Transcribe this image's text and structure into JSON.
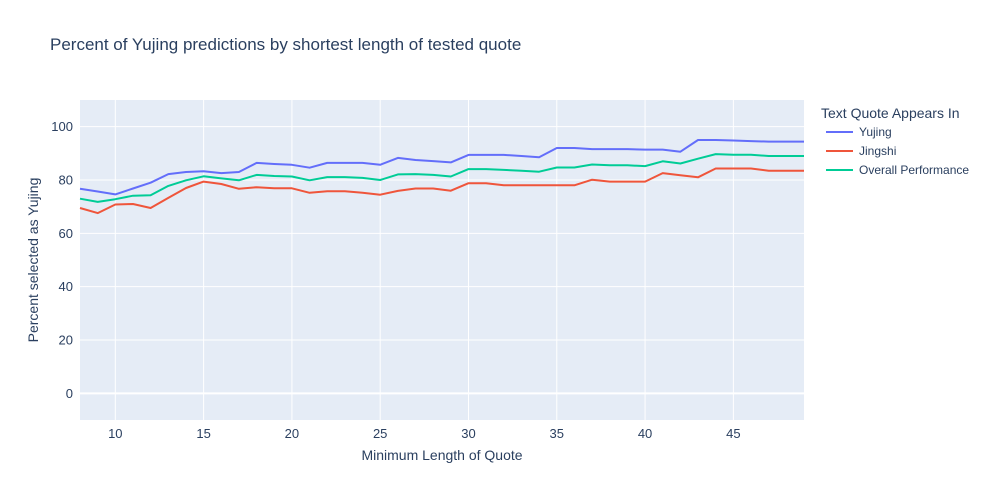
{
  "chart_data": {
    "type": "line",
    "title": "Percent of Yujing predictions by shortest length of tested quote",
    "xlabel": "Minimum Length of Quote",
    "ylabel": "Percent selected as Yujing",
    "xlim": [
      8,
      49
    ],
    "ylim": [
      -10,
      110
    ],
    "xticks": [
      10,
      15,
      20,
      25,
      30,
      35,
      40,
      45
    ],
    "yticks": [
      0,
      20,
      40,
      60,
      80,
      100
    ],
    "legend_title": "Text Quote Appears In",
    "legend_position": "right",
    "grid": true,
    "x": [
      8,
      9,
      10,
      11,
      12,
      13,
      14,
      15,
      16,
      17,
      18,
      19,
      20,
      21,
      22,
      23,
      24,
      25,
      26,
      27,
      28,
      29,
      30,
      31,
      32,
      33,
      34,
      35,
      36,
      37,
      38,
      39,
      40,
      41,
      42,
      43,
      44,
      45,
      46,
      47,
      48,
      49
    ],
    "series": [
      {
        "name": "Yujing",
        "color": "#636efa",
        "values": [
          76.7,
          75.7,
          74.6,
          76.8,
          79.0,
          82.2,
          83.0,
          83.3,
          82.6,
          83.0,
          86.4,
          86.0,
          85.7,
          84.6,
          86.4,
          86.4,
          86.4,
          85.7,
          88.3,
          87.5,
          87.1,
          86.6,
          89.4,
          89.4,
          89.4,
          89.0,
          88.5,
          92.0,
          92.0,
          91.6,
          91.6,
          91.6,
          91.4,
          91.4,
          90.6,
          95.0,
          95.0,
          94.8,
          94.6,
          94.4,
          94.4,
          94.4
        ]
      },
      {
        "name": "Jingshi",
        "color": "#ef553b",
        "values": [
          69.5,
          67.6,
          70.8,
          71.0,
          69.5,
          73.3,
          77.0,
          79.4,
          78.5,
          76.7,
          77.3,
          76.9,
          76.9,
          75.2,
          75.8,
          75.8,
          75.2,
          74.5,
          75.9,
          76.8,
          76.8,
          76.0,
          78.8,
          78.8,
          78.0,
          78.0,
          78.0,
          78.0,
          78.0,
          80.1,
          79.4,
          79.4,
          79.4,
          82.6,
          81.8,
          81.0,
          84.3,
          84.3,
          84.3,
          83.5,
          83.5,
          83.5
        ]
      },
      {
        "name": "Overall Performance",
        "color": "#00cc96",
        "values": [
          73.0,
          71.8,
          72.8,
          74.1,
          74.3,
          77.8,
          79.9,
          81.4,
          80.6,
          79.9,
          81.9,
          81.5,
          81.3,
          79.9,
          81.1,
          81.1,
          80.8,
          80.0,
          82.1,
          82.2,
          81.9,
          81.3,
          84.1,
          84.1,
          83.8,
          83.5,
          83.1,
          84.7,
          84.7,
          85.8,
          85.5,
          85.5,
          85.2,
          87.0,
          86.2,
          88.0,
          89.7,
          89.5,
          89.5,
          89.0,
          89.0,
          89.0
        ]
      }
    ]
  }
}
